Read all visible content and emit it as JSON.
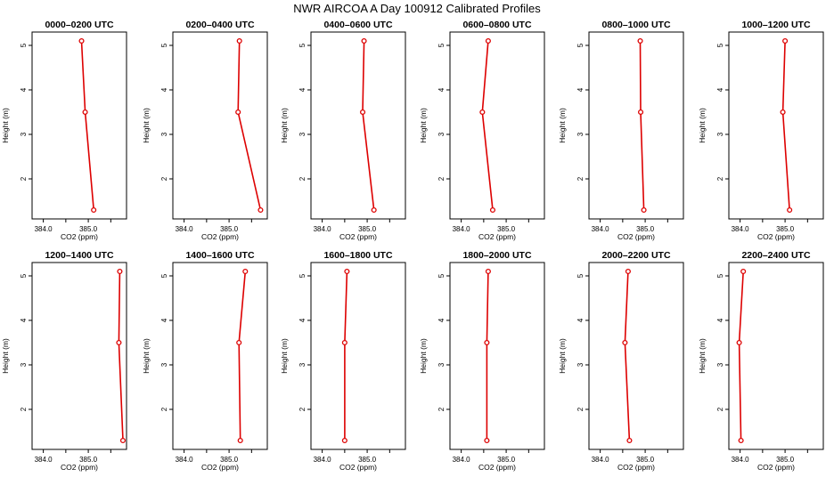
{
  "figure_title": "NWR AIRCOA A  Day 100912  Calibrated Profiles",
  "colors": {
    "line": "#dd0000",
    "marker": "#dd0000",
    "axis": "#000000"
  },
  "chart_data": {
    "type": "line",
    "title": "NWR AIRCOA A  Day 100912  Calibrated Profiles",
    "xlabel": "CO2 (ppm)",
    "ylabel": "Height (m)",
    "xlim": [
      383.75,
      385.85
    ],
    "ylim": [
      1.1,
      5.3
    ],
    "xticks": [
      384.0,
      384.5,
      385.0,
      385.5
    ],
    "xtick_labels": [
      "384.0",
      "",
      "385.0",
      ""
    ],
    "yticks": [
      2,
      3,
      4,
      5
    ],
    "ytick_labels": [
      "2",
      "3",
      "4",
      "5"
    ],
    "heights": [
      5.1,
      3.5,
      1.3
    ],
    "panels": [
      {
        "title": "0000–0200 UTC",
        "co2": [
          384.85,
          384.93,
          385.12
        ]
      },
      {
        "title": "0200–0400 UTC",
        "co2": [
          385.23,
          385.2,
          385.7
        ]
      },
      {
        "title": "0400–0600 UTC",
        "co2": [
          384.93,
          384.9,
          385.15
        ]
      },
      {
        "title": "0600–0800 UTC",
        "co2": [
          384.6,
          384.47,
          384.7
        ]
      },
      {
        "title": "0800–1000 UTC",
        "co2": [
          384.89,
          384.9,
          384.97
        ]
      },
      {
        "title": "1000–1200 UTC",
        "co2": [
          385.0,
          384.95,
          385.1
        ]
      },
      {
        "title": "1200–1400 UTC",
        "co2": [
          385.7,
          385.68,
          385.77
        ]
      },
      {
        "title": "1400–1600 UTC",
        "co2": [
          385.36,
          385.22,
          385.25
        ]
      },
      {
        "title": "1600–1800 UTC",
        "co2": [
          384.55,
          384.5,
          384.5
        ]
      },
      {
        "title": "1800–2000 UTC",
        "co2": [
          384.6,
          384.57,
          384.57
        ]
      },
      {
        "title": "2000–2200 UTC",
        "co2": [
          384.62,
          384.55,
          384.65
        ]
      },
      {
        "title": "2200–2400 UTC",
        "co2": [
          384.07,
          383.98,
          384.02
        ]
      }
    ]
  }
}
